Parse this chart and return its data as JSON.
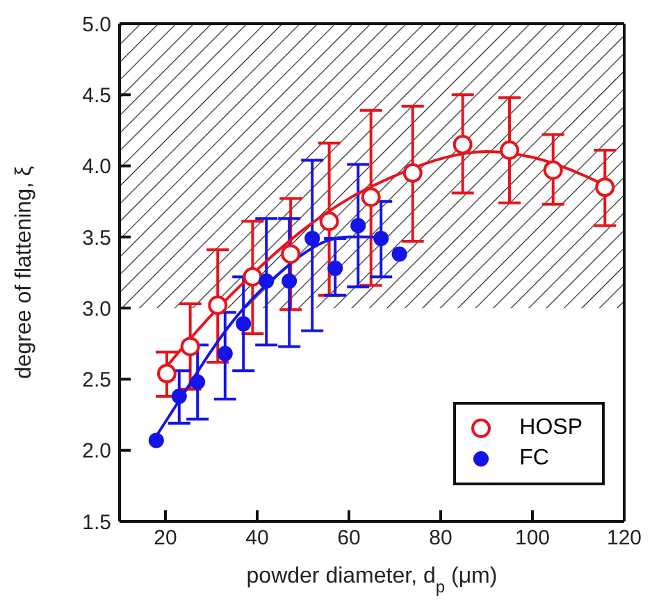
{
  "chart_data": {
    "type": "scatter",
    "xlabel": "powder diameter, d$_{p}$ (μm)",
    "ylabel": "degree of flattening, ξ",
    "xlim": [
      10,
      120
    ],
    "xticks": [
      20,
      40,
      60,
      80,
      100,
      120
    ],
    "ylim": [
      1.5,
      5.0
    ],
    "yticks": [
      1.5,
      {
        "value": 2,
        "label": "2.0"
      },
      2.5,
      {
        "value": 3,
        "label": "3.0"
      },
      3.5,
      {
        "value": 4,
        "label": "4.0"
      },
      4.5,
      {
        "value": 5,
        "label": "5.0"
      }
    ],
    "grid": false,
    "legend": "bottom right",
    "marker": "circle",
    "bands": [
      {
        "axis": "y",
        "from": 3.0,
        "to": 5.0
      }
    ],
    "series": [
      {
        "name": "HOSP",
        "color": "#e8141c",
        "x": [
          20.3,
          25.4,
          31.4,
          39,
          47.3,
          55.7,
          64.8,
          73.9,
          84.8,
          95,
          104.5,
          115.8
        ],
        "values": [
          2.54,
          2.73,
          3.02,
          3.22,
          3.38,
          3.61,
          3.78,
          3.95,
          4.15,
          4.11,
          3.97,
          3.85
        ],
        "errors": [
          [
            2.38,
            2.69
          ],
          [
            2.43,
            3.03
          ],
          [
            2.62,
            3.41
          ],
          [
            2.82,
            3.61
          ],
          [
            2.99,
            3.77
          ],
          [
            3.09,
            4.16
          ],
          [
            3.16,
            4.39
          ],
          [
            3.47,
            4.42
          ],
          [
            3.81,
            4.5
          ],
          [
            3.74,
            4.48
          ],
          [
            3.73,
            4.22
          ],
          [
            3.58,
            4.11
          ]
        ]
      },
      {
        "name": "FC",
        "color": "#1414e6",
        "x": [
          18,
          23,
          27,
          33,
          37,
          42,
          47,
          52,
          57,
          62,
          67,
          71
        ],
        "values": [
          2.07,
          2.38,
          2.48,
          2.68,
          2.89,
          3.19,
          3.19,
          3.49,
          3.28,
          3.58,
          3.49,
          3.38
        ],
        "errors": [
          null,
          [
            2.19,
            2.56
          ],
          [
            2.22,
            2.74
          ],
          [
            2.36,
            2.97
          ],
          [
            2.56,
            3.22
          ],
          [
            2.74,
            3.63
          ],
          [
            2.73,
            3.63
          ],
          [
            2.84,
            4.04
          ],
          [
            3.09,
            3.49
          ],
          [
            3.15,
            4.01
          ],
          [
            3.22,
            3.75
          ],
          null
        ]
      },
      {
        "type": "line",
        "marker": "none",
        "color": "#e8141c",
        "x": [
          20,
          30,
          40,
          50,
          60,
          70,
          80,
          90,
          100,
          110,
          116
        ],
        "values": [
          2.58,
          2.95,
          3.27,
          3.55,
          3.77,
          3.93,
          4.05,
          4.1,
          4.06,
          3.95,
          3.86
        ]
      },
      {
        "type": "line",
        "marker": "none",
        "color": "#1414e6",
        "x": [
          18,
          25,
          30,
          35,
          40,
          45,
          50,
          55,
          60,
          65,
          68
        ],
        "values": [
          2.1,
          2.45,
          2.7,
          2.92,
          3.1,
          3.25,
          3.38,
          3.47,
          3.5,
          3.5,
          3.48
        ]
      }
    ]
  }
}
